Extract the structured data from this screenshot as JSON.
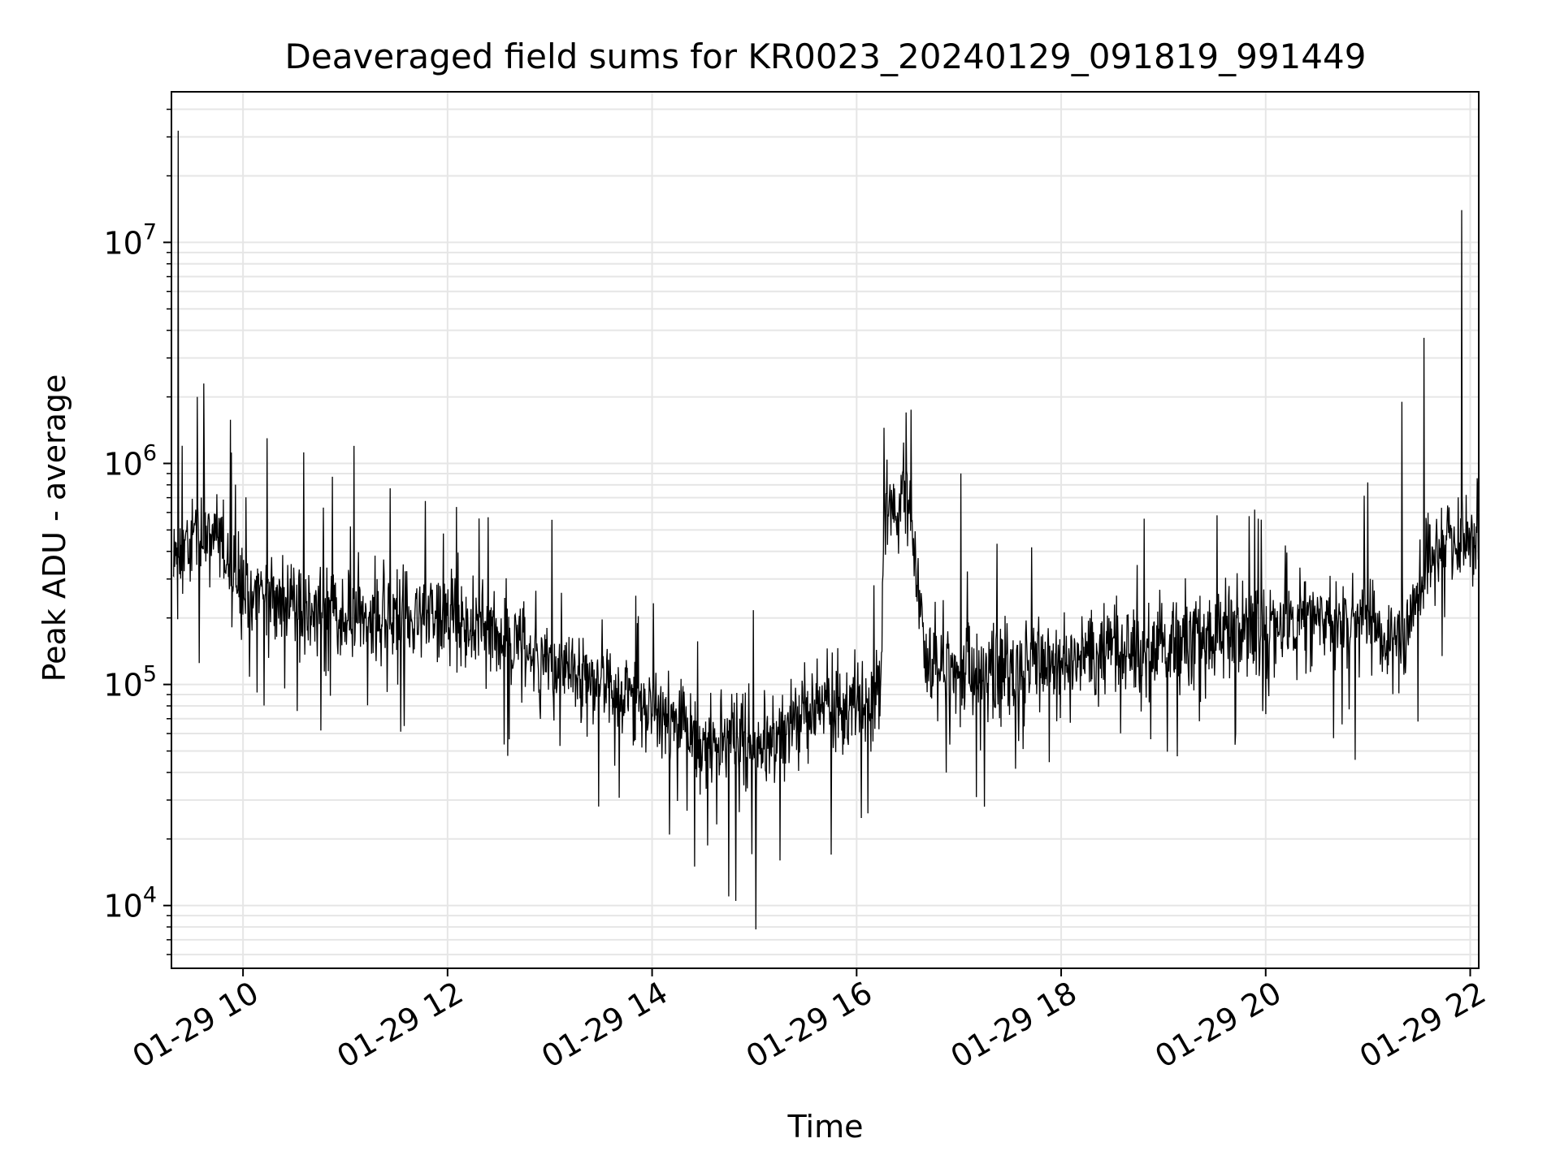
{
  "chart_data": {
    "type": "line",
    "title": "Deaveraged field sums for KR0023_20240129_091819_991449",
    "xlabel": "Time",
    "ylabel": "Peak ADU - average",
    "x_scale": "time",
    "y_scale": "log",
    "xlim": [
      "2024-01-29T09:18",
      "2024-01-29T22:05"
    ],
    "ylim": [
      5200,
      48000000
    ],
    "x_ticks": [
      "01-29 10",
      "01-29 12",
      "01-29 14",
      "01-29 16",
      "01-29 18",
      "01-29 20",
      "01-29 22"
    ],
    "y_ticks": [
      10000,
      100000,
      1000000,
      10000000
    ],
    "y_tick_labels": [
      {
        "base": "10",
        "exp": "4"
      },
      {
        "base": "10",
        "exp": "5"
      },
      {
        "base": "10",
        "exp": "6"
      },
      {
        "base": "10",
        "exp": "7"
      }
    ],
    "grid": "major and minor",
    "line_color": "#000000",
    "grid_color": "#e6e6e6",
    "series": [
      {
        "profile": [
          [
            "2024-01-29T09:19",
            400000
          ],
          [
            "2024-01-29T09:30",
            450000
          ],
          [
            "2024-01-29T09:45",
            480000
          ],
          [
            "2024-01-29T10:00",
            260000
          ],
          [
            "2024-01-29T10:30",
            220000
          ],
          [
            "2024-01-29T11:00",
            200000
          ],
          [
            "2024-01-29T11:30",
            210000
          ],
          [
            "2024-01-29T12:00",
            200000
          ],
          [
            "2024-01-29T12:30",
            170000
          ],
          [
            "2024-01-29T13:00",
            120000
          ],
          [
            "2024-01-29T13:30",
            100000
          ],
          [
            "2024-01-29T14:00",
            80000
          ],
          [
            "2024-01-29T14:30",
            55000
          ],
          [
            "2024-01-29T15:00",
            50000
          ],
          [
            "2024-01-29T15:30",
            75000
          ],
          [
            "2024-01-29T16:00",
            80000
          ],
          [
            "2024-01-29T16:14",
            90000
          ],
          [
            "2024-01-29T16:16",
            550000
          ],
          [
            "2024-01-29T16:30",
            700000
          ],
          [
            "2024-01-29T16:33",
            450000
          ],
          [
            "2024-01-29T16:40",
            130000
          ],
          [
            "2024-01-29T17:00",
            120000
          ],
          [
            "2024-01-29T17:30",
            120000
          ],
          [
            "2024-01-29T18:00",
            130000
          ],
          [
            "2024-01-29T18:30",
            140000
          ],
          [
            "2024-01-29T19:00",
            150000
          ],
          [
            "2024-01-29T19:30",
            160000
          ],
          [
            "2024-01-29T20:00",
            180000
          ],
          [
            "2024-01-29T20:30",
            200000
          ],
          [
            "2024-01-29T21:00",
            190000
          ],
          [
            "2024-01-29T21:20",
            150000
          ],
          [
            "2024-01-29T21:35",
            350000
          ],
          [
            "2024-01-29T21:45",
            450000
          ],
          [
            "2024-01-29T22:05",
            450000
          ]
        ],
        "noise_decades": 0.26,
        "spikes": [
          [
            "2024-01-29T09:22",
            32000000
          ],
          [
            "2024-01-29T09:33",
            2000000
          ],
          [
            "2024-01-29T09:37",
            2300000
          ],
          [
            "2024-01-29T10:14",
            1300000
          ],
          [
            "2024-01-29T11:05",
            1200000
          ],
          [
            "2024-01-29T16:16",
            1450000
          ],
          [
            "2024-01-29T16:29",
            1700000
          ],
          [
            "2024-01-29T16:32",
            1750000
          ],
          [
            "2024-01-29T17:01",
            900000
          ],
          [
            "2024-01-29T21:00",
            820000
          ],
          [
            "2024-01-29T21:20",
            1900000
          ],
          [
            "2024-01-29T21:33",
            3700000
          ],
          [
            "2024-01-29T21:55",
            14000000
          ]
        ],
        "dips": [
          [
            "2024-01-29T14:25",
            15000
          ],
          [
            "2024-01-29T14:45",
            11000
          ],
          [
            "2024-01-29T14:49",
            10500
          ],
          [
            "2024-01-29T15:01",
            7800
          ],
          [
            "2024-01-29T15:15",
            16000
          ],
          [
            "2024-01-29T15:45",
            17000
          ],
          [
            "2024-01-29T17:15",
            28000
          ]
        ]
      }
    ]
  }
}
